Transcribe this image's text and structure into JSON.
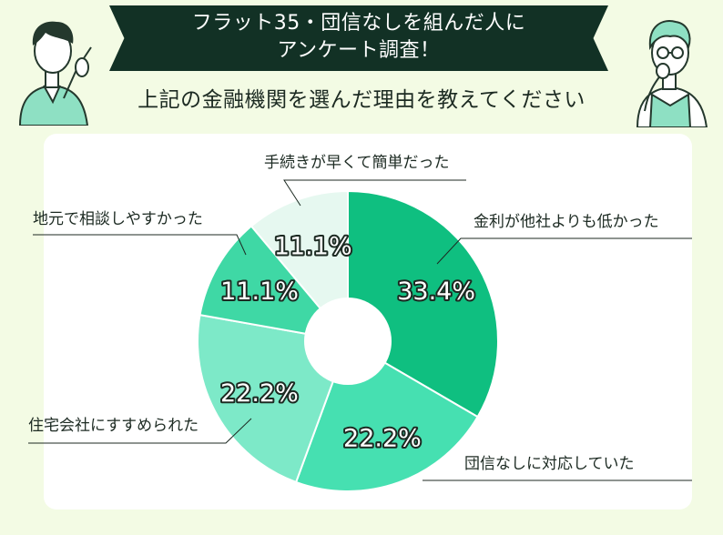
{
  "header": {
    "banner_line1": "フラット35・団信なしを組んだ人に",
    "banner_line2": "アンケート調査！",
    "question": "上記の金融機関を選んだ理由を教えてください"
  },
  "chart_data": {
    "type": "pie",
    "donut": true,
    "unit": "%",
    "slices": [
      {
        "label": "金利が他社よりも低かった",
        "value": 33.4,
        "value_label": "33.4%",
        "color": "#0fbf80"
      },
      {
        "label": "団信なしに対応していた",
        "value": 22.2,
        "value_label": "22.2%",
        "color": "#46e0b1"
      },
      {
        "label": "住宅会社にすすめられた",
        "value": 22.2,
        "value_label": "22.2%",
        "color": "#7de9c8"
      },
      {
        "label": "地元で相談しやすかった",
        "value": 11.1,
        "value_label": "11.1%",
        "color": "#3fd8a5"
      },
      {
        "label": "手続きが早くて簡単だった",
        "value": 11.1,
        "value_label": "11.1%",
        "color": "#e6f8f0"
      }
    ]
  },
  "colors": {
    "background": "#f3fbe4",
    "banner": "#123125",
    "card": "#ffffff"
  },
  "icons": {
    "left": "man-pointing-icon",
    "right": "man-thinking-icon"
  }
}
